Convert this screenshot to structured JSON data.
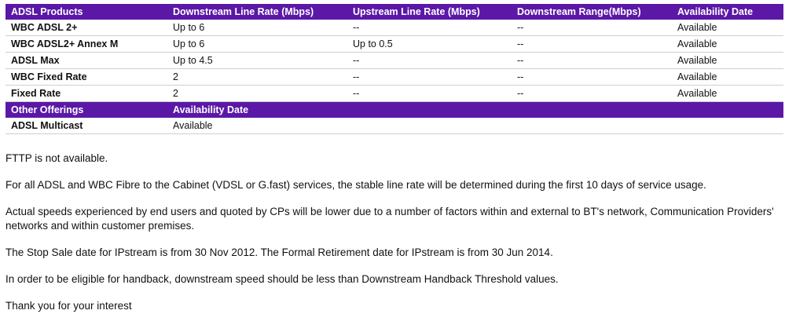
{
  "theme": {
    "header_bg": "#5b18a6",
    "header_text": "#ffffff",
    "row_border": "#cfcfcf"
  },
  "products_table": {
    "columns": [
      "ADSL Products",
      "Downstream Line Rate (Mbps)",
      "Upstream Line Rate (Mbps)",
      "Downstream Range(Mbps)",
      "Availability Date"
    ],
    "rows": [
      {
        "name": "WBC ADSL 2+",
        "downstream": "Up to 6",
        "upstream": "--",
        "range": "--",
        "availability": "Available"
      },
      {
        "name": "WBC ADSL2+ Annex M",
        "downstream": "Up to 6",
        "upstream": "Up to 0.5",
        "range": "--",
        "availability": "Available"
      },
      {
        "name": "ADSL Max",
        "downstream": "Up to 4.5",
        "upstream": "--",
        "range": "--",
        "availability": "Available"
      },
      {
        "name": "WBC Fixed Rate",
        "downstream": "2",
        "upstream": "--",
        "range": "--",
        "availability": "Available"
      },
      {
        "name": "Fixed Rate",
        "downstream": "2",
        "upstream": "--",
        "range": "--",
        "availability": "Available"
      }
    ]
  },
  "other_offerings_table": {
    "columns": [
      "Other Offerings",
      "Availability Date"
    ],
    "rows": [
      {
        "name": "ADSL Multicast",
        "availability": "Available"
      }
    ]
  },
  "notes": [
    "FTTP is not available.",
    "For all ADSL and WBC Fibre to the Cabinet (VDSL or G.fast) services, the stable line rate will be determined during the first 10 days of service usage.",
    "Actual speeds experienced by end users and quoted by CPs will be lower due to a number of factors within and external to BT's network, Communication Providers' networks and within customer premises.",
    "The Stop Sale date for IPstream is from 30 Nov 2012. The Formal Retirement date for IPstream is from 30 Jun 2014.",
    "In order to be eligible for handback, downstream speed should be less than Downstream Handback Threshold values.",
    "Thank you for your interest"
  ]
}
